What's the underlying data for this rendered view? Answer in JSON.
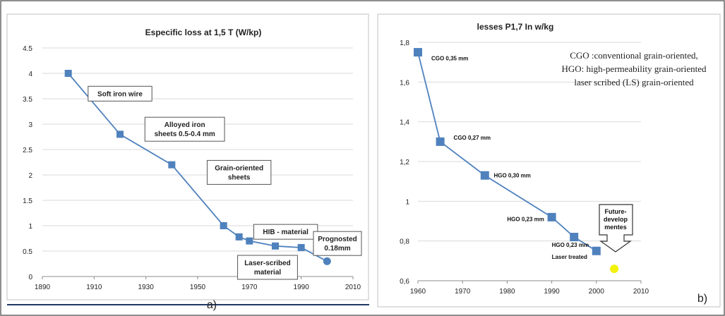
{
  "panels": {
    "left_label": "a)",
    "right_label": "b)"
  },
  "chart_data": [
    {
      "type": "line",
      "title": "Especific loss at 1,5 T (W/kp)",
      "xlabel": "",
      "ylabel": "",
      "xlim": [
        1890,
        2010
      ],
      "ylim": [
        0,
        4.5
      ],
      "x_ticks": [
        "1890",
        "1910",
        "1930",
        "1950",
        "1970",
        "1990",
        "2010"
      ],
      "y_ticks": [
        "0",
        "0.5",
        "1",
        "1.5",
        "2",
        "2.5",
        "3",
        "3.5",
        "4",
        "4.5"
      ],
      "grid": "horizontal",
      "series": [
        {
          "x": [
            1900,
            1920,
            1940,
            1960,
            1966,
            1970,
            1980,
            1990,
            2000
          ],
          "y": [
            4.0,
            2.8,
            2.2,
            1.0,
            0.78,
            0.7,
            0.6,
            0.57,
            0.3
          ],
          "color": "#4f81bd",
          "last_point_marker": "circle"
        }
      ],
      "annotations": [
        {
          "lines": [
            "Soft iron wire"
          ],
          "x": 1920,
          "y": 3.6
        },
        {
          "lines": [
            "Alloyed iron",
            "sheets 0.5-0.4  mm"
          ],
          "x": 1945,
          "y": 2.9
        },
        {
          "lines": [
            "Grain-oriented",
            "sheets"
          ],
          "x": 1966,
          "y": 2.05
        },
        {
          "lines": [
            "HIB - material"
          ],
          "x": 1984,
          "y": 0.88
        },
        {
          "lines": [
            "Laser-scribed",
            "material"
          ],
          "x": 1977,
          "y": 0.18
        },
        {
          "lines": [
            "Prognosted",
            "0.18mm"
          ],
          "x": 2004,
          "y": 0.65
        }
      ]
    },
    {
      "type": "line",
      "title": "lesses P1,7 In w/kg",
      "xlabel": "",
      "ylabel": "",
      "xlim": [
        1960,
        2010
      ],
      "ylim": [
        0.6,
        1.8
      ],
      "x_ticks": [
        "1960",
        "1970",
        "1980",
        "1990",
        "2000",
        "2010"
      ],
      "y_ticks": [
        "0,6",
        "0,8",
        "1",
        "1,2",
        "1,4",
        "1,6",
        "1,8"
      ],
      "grid": "horizontal",
      "series": [
        {
          "x": [
            1960,
            1965,
            1975,
            1990,
            1995,
            2000
          ],
          "y": [
            1.75,
            1.3,
            1.13,
            0.92,
            0.82,
            0.75
          ],
          "color": "#4f81bd"
        }
      ],
      "point_labels": [
        {
          "text": "CGO 0,35 mm",
          "x": 1963,
          "y": 1.71
        },
        {
          "text": "CGO 0,27 mm",
          "x": 1968,
          "y": 1.31
        },
        {
          "text": "HGO 0,30 mm",
          "x": 1977,
          "y": 1.12
        },
        {
          "text": "HGO 0,23 mm",
          "x": 1980,
          "y": 0.9
        },
        {
          "text": "HGO 0,23 mm",
          "x": 1990,
          "y": 0.77
        },
        {
          "text": "Laser treated",
          "x": 1990,
          "y": 0.71
        }
      ],
      "future_point": {
        "x": 2004,
        "y": 0.66,
        "color": "#f2f20a"
      },
      "arrow_label": [
        "Future-",
        "develop",
        "mentes"
      ],
      "legend_text": [
        "CGO :conventional grain-oriented,",
        "HGO: high-permeability grain-oriented",
        "laser scribed (LS) grain-oriented"
      ]
    }
  ]
}
